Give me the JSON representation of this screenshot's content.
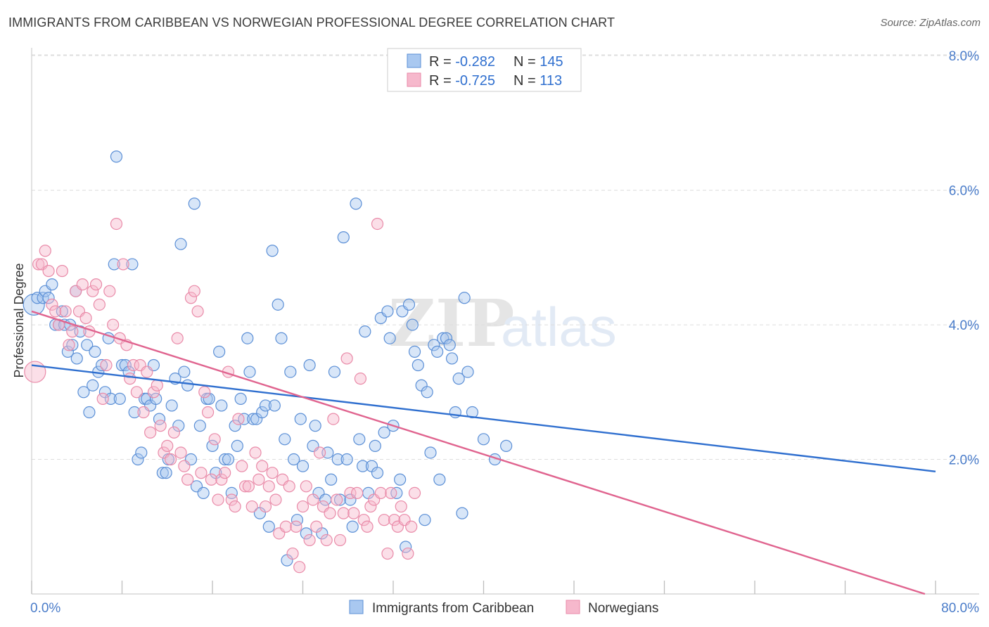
{
  "header": {
    "title": "IMMIGRANTS FROM CARIBBEAN VS NORWEGIAN PROFESSIONAL DEGREE CORRELATION CHART",
    "source": "Source: ZipAtlas.com"
  },
  "colors": {
    "blue_fill": "#a9c8f0",
    "blue_stroke": "#5b8fd6",
    "blue_line": "#2f6fcf",
    "pink_fill": "#f6b8cc",
    "pink_stroke": "#e98aa8",
    "pink_line": "#e0648f",
    "tick_text": "#4a7cc9",
    "grid": "#dddddd"
  },
  "legend": {
    "rows": [
      {
        "r_label": "R = ",
        "r_value": "-0.282",
        "n_label": "N = ",
        "n_value": "145"
      },
      {
        "r_label": "R = ",
        "r_value": "-0.725",
        "n_label": "N = ",
        "n_value": "113"
      }
    ]
  },
  "watermark": {
    "zip": "ZIP",
    "atlas": "atlas"
  },
  "chart_data": {
    "type": "scatter",
    "title": "IMMIGRANTS FROM CARIBBEAN VS NORWEGIAN PROFESSIONAL DEGREE CORRELATION CHART",
    "xlabel": "",
    "ylabel": "Professional Degree",
    "xlim": [
      0,
      80
    ],
    "ylim": [
      0,
      8.2
    ],
    "x_tick_labels": [
      "0.0%",
      "80.0%"
    ],
    "y_ticks": [
      2,
      4,
      6,
      8
    ],
    "y_tick_labels": [
      "2.0%",
      "4.0%",
      "6.0%",
      "8.0%"
    ],
    "grid": true,
    "legend_position": "top-center",
    "series": [
      {
        "name": "Immigrants from Caribbean",
        "color": "#a9c8f0",
        "trend": {
          "x": [
            0,
            80
          ],
          "y": [
            3.4,
            1.82
          ]
        },
        "points": [
          [
            0.2,
            4.3
          ],
          [
            0.5,
            4.4
          ],
          [
            1.0,
            4.4
          ],
          [
            1.2,
            4.5
          ],
          [
            1.5,
            4.4
          ],
          [
            1.8,
            4.6
          ],
          [
            2.1,
            4.0
          ],
          [
            2.4,
            4.0
          ],
          [
            2.7,
            4.2
          ],
          [
            2.9,
            4.0
          ],
          [
            3.2,
            3.6
          ],
          [
            3.4,
            4.0
          ],
          [
            3.6,
            3.7
          ],
          [
            3.9,
            4.5
          ],
          [
            4.0,
            3.5
          ],
          [
            4.3,
            3.9
          ],
          [
            4.6,
            3.0
          ],
          [
            4.9,
            3.7
          ],
          [
            5.1,
            2.7
          ],
          [
            5.4,
            3.1
          ],
          [
            5.6,
            3.6
          ],
          [
            5.9,
            3.3
          ],
          [
            6.2,
            3.4
          ],
          [
            6.5,
            3.0
          ],
          [
            6.8,
            3.8
          ],
          [
            7.0,
            2.9
          ],
          [
            7.3,
            4.9
          ],
          [
            7.5,
            6.5
          ],
          [
            7.8,
            2.9
          ],
          [
            8.0,
            3.4
          ],
          [
            8.3,
            3.4
          ],
          [
            8.6,
            3.3
          ],
          [
            8.9,
            4.9
          ],
          [
            9.1,
            2.7
          ],
          [
            9.4,
            2.0
          ],
          [
            9.7,
            2.1
          ],
          [
            10.0,
            2.9
          ],
          [
            10.2,
            2.9
          ],
          [
            10.5,
            2.8
          ],
          [
            10.8,
            3.4
          ],
          [
            11.0,
            2.9
          ],
          [
            11.3,
            2.6
          ],
          [
            11.6,
            1.8
          ],
          [
            11.9,
            1.8
          ],
          [
            12.1,
            2.0
          ],
          [
            12.4,
            2.8
          ],
          [
            12.7,
            3.2
          ],
          [
            13.0,
            2.5
          ],
          [
            13.2,
            5.2
          ],
          [
            13.5,
            3.3
          ],
          [
            13.8,
            3.1
          ],
          [
            14.1,
            2.0
          ],
          [
            14.4,
            5.8
          ],
          [
            14.6,
            1.6
          ],
          [
            14.9,
            2.5
          ],
          [
            15.2,
            1.5
          ],
          [
            15.5,
            2.9
          ],
          [
            15.7,
            2.9
          ],
          [
            16.0,
            2.2
          ],
          [
            16.3,
            1.8
          ],
          [
            16.6,
            3.6
          ],
          [
            16.8,
            2.8
          ],
          [
            17.1,
            2.0
          ],
          [
            17.4,
            2.0
          ],
          [
            17.7,
            1.5
          ],
          [
            18.0,
            2.5
          ],
          [
            18.2,
            2.2
          ],
          [
            18.5,
            2.9
          ],
          [
            18.8,
            2.6
          ],
          [
            19.1,
            3.8
          ],
          [
            19.3,
            3.3
          ],
          [
            19.6,
            2.6
          ],
          [
            19.9,
            2.6
          ],
          [
            20.2,
            1.2
          ],
          [
            20.4,
            2.7
          ],
          [
            20.7,
            2.8
          ],
          [
            21.0,
            1.0
          ],
          [
            21.3,
            5.1
          ],
          [
            21.5,
            2.8
          ],
          [
            21.8,
            4.3
          ],
          [
            22.1,
            3.8
          ],
          [
            22.4,
            2.3
          ],
          [
            22.6,
            0.5
          ],
          [
            22.9,
            3.3
          ],
          [
            23.2,
            2.0
          ],
          [
            23.5,
            1.1
          ],
          [
            23.8,
            2.6
          ],
          [
            24.0,
            1.9
          ],
          [
            24.3,
            0.9
          ],
          [
            24.6,
            3.4
          ],
          [
            24.9,
            2.2
          ],
          [
            25.1,
            2.5
          ],
          [
            25.4,
            1.5
          ],
          [
            25.7,
            0.9
          ],
          [
            26.0,
            1.4
          ],
          [
            26.2,
            2.1
          ],
          [
            26.5,
            1.7
          ],
          [
            26.8,
            3.3
          ],
          [
            27.1,
            2.0
          ],
          [
            27.3,
            1.4
          ],
          [
            27.6,
            5.3
          ],
          [
            27.9,
            2.0
          ],
          [
            28.2,
            1.4
          ],
          [
            28.4,
            1.0
          ],
          [
            28.7,
            5.8
          ],
          [
            29.0,
            2.3
          ],
          [
            29.3,
            1.9
          ],
          [
            29.5,
            3.9
          ],
          [
            29.8,
            1.5
          ],
          [
            30.1,
            1.9
          ],
          [
            30.4,
            2.2
          ],
          [
            30.6,
            1.8
          ],
          [
            30.9,
            4.1
          ],
          [
            31.2,
            2.4
          ],
          [
            31.5,
            4.2
          ],
          [
            31.7,
            3.8
          ],
          [
            32.0,
            2.5
          ],
          [
            32.3,
            1.5
          ],
          [
            32.6,
            1.7
          ],
          [
            32.8,
            4.2
          ],
          [
            33.1,
            0.7
          ],
          [
            33.4,
            4.3
          ],
          [
            33.7,
            4.0
          ],
          [
            33.9,
            3.6
          ],
          [
            34.2,
            3.4
          ],
          [
            34.5,
            3.1
          ],
          [
            34.8,
            1.1
          ],
          [
            35.0,
            3.0
          ],
          [
            35.3,
            2.1
          ],
          [
            35.6,
            3.7
          ],
          [
            35.9,
            3.6
          ],
          [
            36.1,
            1.7
          ],
          [
            36.4,
            3.8
          ],
          [
            36.7,
            3.8
          ],
          [
            37.0,
            3.7
          ],
          [
            37.2,
            3.5
          ],
          [
            37.5,
            2.7
          ],
          [
            37.8,
            3.2
          ],
          [
            38.1,
            1.2
          ],
          [
            38.3,
            4.4
          ],
          [
            38.6,
            3.3
          ],
          [
            39.0,
            2.7
          ],
          [
            40.0,
            2.3
          ],
          [
            41.0,
            2.0
          ],
          [
            42.0,
            2.2
          ]
        ]
      },
      {
        "name": "Norwegians",
        "color": "#f6b8cc",
        "trend": {
          "x": [
            0,
            80
          ],
          "y": [
            4.2,
            -0.05
          ]
        },
        "points": [
          [
            0.3,
            3.3
          ],
          [
            0.6,
            4.9
          ],
          [
            0.9,
            4.9
          ],
          [
            1.2,
            5.1
          ],
          [
            1.5,
            4.8
          ],
          [
            1.8,
            4.3
          ],
          [
            2.1,
            4.2
          ],
          [
            2.4,
            4.0
          ],
          [
            2.7,
            4.8
          ],
          [
            3.0,
            4.2
          ],
          [
            3.3,
            3.7
          ],
          [
            3.6,
            3.9
          ],
          [
            3.9,
            4.5
          ],
          [
            4.2,
            4.2
          ],
          [
            4.5,
            4.6
          ],
          [
            4.8,
            4.1
          ],
          [
            5.1,
            3.9
          ],
          [
            5.4,
            4.5
          ],
          [
            5.7,
            4.6
          ],
          [
            6.0,
            4.3
          ],
          [
            6.3,
            2.9
          ],
          [
            6.6,
            3.4
          ],
          [
            6.9,
            4.5
          ],
          [
            7.2,
            4.0
          ],
          [
            7.5,
            5.5
          ],
          [
            7.8,
            3.8
          ],
          [
            8.1,
            4.9
          ],
          [
            8.4,
            3.7
          ],
          [
            8.7,
            3.2
          ],
          [
            9.0,
            3.4
          ],
          [
            9.3,
            3.0
          ],
          [
            9.6,
            3.4
          ],
          [
            9.9,
            2.7
          ],
          [
            10.2,
            3.3
          ],
          [
            10.5,
            2.4
          ],
          [
            10.8,
            3.0
          ],
          [
            11.1,
            3.1
          ],
          [
            11.4,
            2.5
          ],
          [
            11.7,
            2.1
          ],
          [
            12.0,
            2.2
          ],
          [
            12.3,
            2.0
          ],
          [
            12.6,
            2.4
          ],
          [
            12.9,
            3.8
          ],
          [
            13.2,
            2.1
          ],
          [
            13.5,
            1.9
          ],
          [
            13.8,
            1.7
          ],
          [
            14.1,
            4.4
          ],
          [
            14.4,
            4.5
          ],
          [
            14.7,
            4.2
          ],
          [
            15.0,
            1.8
          ],
          [
            15.3,
            3.0
          ],
          [
            15.6,
            2.7
          ],
          [
            15.9,
            1.7
          ],
          [
            16.2,
            2.3
          ],
          [
            16.5,
            1.4
          ],
          [
            16.8,
            1.7
          ],
          [
            17.1,
            1.8
          ],
          [
            17.4,
            3.3
          ],
          [
            17.7,
            1.4
          ],
          [
            18.0,
            1.3
          ],
          [
            18.3,
            2.6
          ],
          [
            18.6,
            1.9
          ],
          [
            18.9,
            1.6
          ],
          [
            19.2,
            1.6
          ],
          [
            19.5,
            1.3
          ],
          [
            19.8,
            2.1
          ],
          [
            20.1,
            1.7
          ],
          [
            20.4,
            1.9
          ],
          [
            20.7,
            1.3
          ],
          [
            21.0,
            1.6
          ],
          [
            21.3,
            1.8
          ],
          [
            21.6,
            1.4
          ],
          [
            21.9,
            0.9
          ],
          [
            22.2,
            1.7
          ],
          [
            22.5,
            1.0
          ],
          [
            22.8,
            1.6
          ],
          [
            23.1,
            0.6
          ],
          [
            23.4,
            1.0
          ],
          [
            23.7,
            0.4
          ],
          [
            24.0,
            1.3
          ],
          [
            24.3,
            1.6
          ],
          [
            24.6,
            0.8
          ],
          [
            24.9,
            1.4
          ],
          [
            25.2,
            1.0
          ],
          [
            25.5,
            2.1
          ],
          [
            25.8,
            1.3
          ],
          [
            26.1,
            0.8
          ],
          [
            26.4,
            1.2
          ],
          [
            26.7,
            2.6
          ],
          [
            27.0,
            1.4
          ],
          [
            27.3,
            0.8
          ],
          [
            27.6,
            1.2
          ],
          [
            27.9,
            3.5
          ],
          [
            28.2,
            1.5
          ],
          [
            28.5,
            1.2
          ],
          [
            28.8,
            1.5
          ],
          [
            29.1,
            3.2
          ],
          [
            29.4,
            1.1
          ],
          [
            29.7,
            1.0
          ],
          [
            30.0,
            1.3
          ],
          [
            30.3,
            1.4
          ],
          [
            30.6,
            5.5
          ],
          [
            30.9,
            1.5
          ],
          [
            31.2,
            1.1
          ],
          [
            31.5,
            0.6
          ],
          [
            31.8,
            1.5
          ],
          [
            32.1,
            1.1
          ],
          [
            32.4,
            1.0
          ],
          [
            32.7,
            1.3
          ],
          [
            33.0,
            1.1
          ],
          [
            33.3,
            0.6
          ],
          [
            33.6,
            1.0
          ],
          [
            33.9,
            1.5
          ]
        ]
      }
    ]
  },
  "bottom_legend": {
    "items": [
      "Immigrants from Caribbean",
      "Norwegians"
    ]
  }
}
